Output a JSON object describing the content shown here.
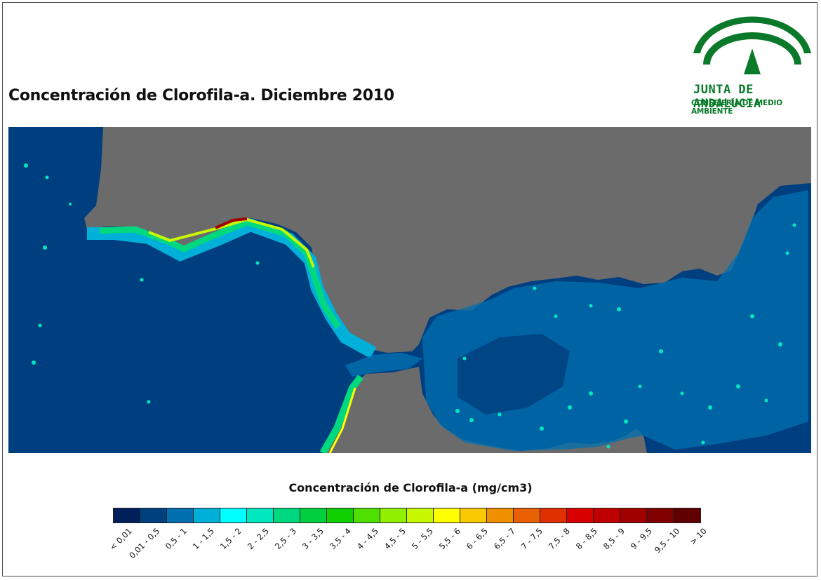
{
  "title": "Concentración de Clorofila-a. Diciembre 2010",
  "logo": {
    "line1": "JUNTA DE ANDALUCIA",
    "line2": "CONSEJERÍA DE MEDIO AMBIENTE",
    "color": "#0a7a2a"
  },
  "map": {
    "land_color": "#6b6b6b",
    "sea_base_color": "#003f7f"
  },
  "legend": {
    "title": "Concentración de Clorofila-a (mg/cm3)",
    "classes": [
      {
        "label": "< 0,01",
        "color": "#00205b"
      },
      {
        "label": "0,01 - 0,5",
        "color": "#00407f"
      },
      {
        "label": "0,5 - 1",
        "color": "#0070b0"
      },
      {
        "label": "1 - 1,5",
        "color": "#00b0d8"
      },
      {
        "label": "1,5 - 2",
        "color": "#00ffff"
      },
      {
        "label": "2 - 2,5",
        "color": "#00e8c0"
      },
      {
        "label": "2,5 - 3",
        "color": "#00d880"
      },
      {
        "label": "3 - 3,5",
        "color": "#00d040"
      },
      {
        "label": "3,5 - 4",
        "color": "#10d000"
      },
      {
        "label": "4 - 4,5",
        "color": "#50e000"
      },
      {
        "label": "4,5 - 5",
        "color": "#90f000"
      },
      {
        "label": "5 - 5,5",
        "color": "#c8f800"
      },
      {
        "label": "5,5 - 6",
        "color": "#ffff00"
      },
      {
        "label": "6 - 6,5",
        "color": "#f8c800"
      },
      {
        "label": "6,5 - 7",
        "color": "#f09000"
      },
      {
        "label": "7 - 7,5",
        "color": "#e86000"
      },
      {
        "label": "7,5 - 8",
        "color": "#e03000"
      },
      {
        "label": "8 - 8,5",
        "color": "#d80000"
      },
      {
        "label": "8,5 - 9",
        "color": "#c00000"
      },
      {
        "label": "9 - 9,5",
        "color": "#a00000"
      },
      {
        "label": "9,5 - 10",
        "color": "#800000"
      },
      {
        "label": "> 10",
        "color": "#600000"
      }
    ]
  }
}
